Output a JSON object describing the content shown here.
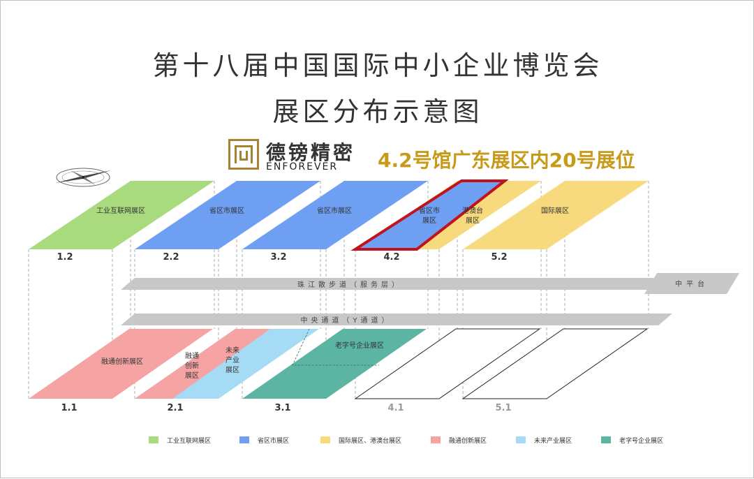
{
  "title_line1": "第十八届中国国际中小企业博览会",
  "title_line2": "展区分布示意图",
  "logo": {
    "name_cn": "德镑精密",
    "name_en": "ENFOREVER"
  },
  "booth_text": "4.2号馆广东展区内20号展位",
  "colors": {
    "green": "#a9db7e",
    "blue": "#6e9ff2",
    "yellow": "#f7da7d",
    "pink": "#f5a3a3",
    "lightblue": "#a6dbf5",
    "teal": "#5bb5a2",
    "gray": "#c8c8c8",
    "highlight": "#c0131b",
    "gold": "#c79a1a"
  },
  "halls_upper": [
    {
      "id": "1.2",
      "fill": "green",
      "labels": [
        {
          "text": "工业互联网展区"
        }
      ]
    },
    {
      "id": "2.2",
      "fill": "blue",
      "labels": [
        {
          "text": "省区市展区"
        }
      ]
    },
    {
      "id": "3.2",
      "fill": "blue",
      "labels": [
        {
          "text": "省区市展区"
        }
      ]
    },
    {
      "id": "4.2",
      "fill": "split-blue-yellow",
      "highlight": true,
      "labels": [
        {
          "text": "省区市\n展区"
        },
        {
          "text": "港澳台\n展区"
        }
      ]
    },
    {
      "id": "5.2",
      "fill": "yellow",
      "labels": [
        {
          "text": "国际展区"
        }
      ]
    }
  ],
  "halls_lower": [
    {
      "id": "1.1",
      "fill": "pink",
      "labels": [
        {
          "text": "融通创新展区"
        }
      ]
    },
    {
      "id": "2.1",
      "fill": "split-pink-lightblue",
      "labels": [
        {
          "text": "融通\n创新\n展区"
        },
        {
          "text": "未来\n产业\n展区"
        }
      ]
    },
    {
      "id": "3.1",
      "fill": "teal",
      "labels": [
        {
          "text": "老字号企业展区"
        }
      ]
    },
    {
      "id": "4.1",
      "fill": "none",
      "muted": true,
      "labels": []
    },
    {
      "id": "5.1",
      "fill": "none",
      "muted": true,
      "labels": []
    }
  ],
  "walkway_upper": "珠江散步道（服务层）",
  "walkway_lower": "中央通道（Y通道）",
  "platform": "中平台",
  "legend": [
    {
      "label": "工业互联网展区",
      "color": "green"
    },
    {
      "label": "省区市展区",
      "color": "blue"
    },
    {
      "label": "国际展区、港澳台展区",
      "color": "yellow"
    },
    {
      "label": "融通创新展区",
      "color": "pink"
    },
    {
      "label": "未来产业展区",
      "color": "lightblue"
    },
    {
      "label": "老字号企业展区",
      "color": "teal"
    }
  ]
}
